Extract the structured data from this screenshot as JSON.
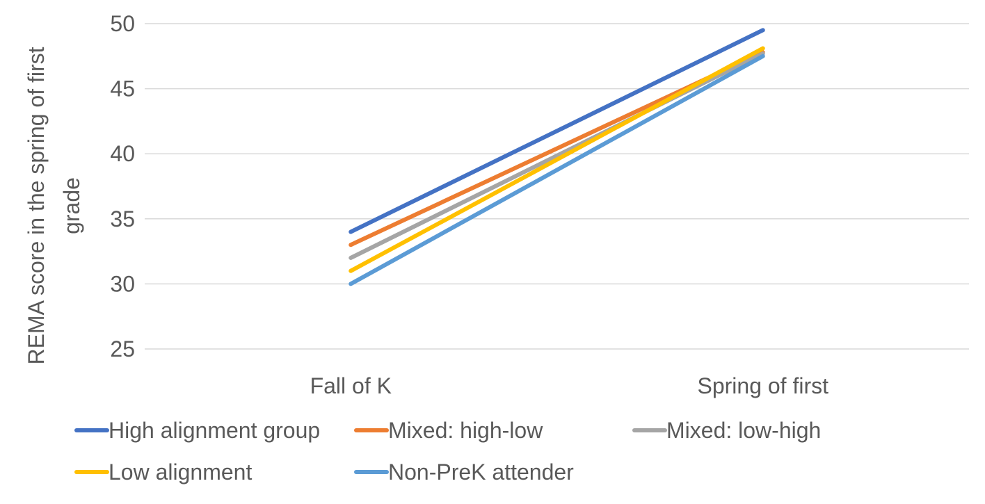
{
  "chart_data": {
    "type": "line",
    "title": "",
    "xlabel": "",
    "ylabel_lines": [
      "REMA score in the spring of first",
      "grade"
    ],
    "categories": [
      "Fall of K",
      "Spring of first"
    ],
    "ylim": [
      25,
      50
    ],
    "yticks": [
      "25",
      "30",
      "35",
      "40",
      "45",
      "50"
    ],
    "grid": true,
    "legend_position": "bottom",
    "series": [
      {
        "name": "High alignment group",
        "color": "#4472C4",
        "values": [
          34,
          49.5
        ]
      },
      {
        "name": "Mixed: high-low",
        "color": "#ED7D31",
        "values": [
          33,
          47.8
        ]
      },
      {
        "name": "Mixed: low-high",
        "color": "#A5A5A5",
        "values": [
          32,
          47.7
        ]
      },
      {
        "name": "Low alignment",
        "color": "#FFC000",
        "values": [
          31,
          48.1
        ]
      },
      {
        "name": "Non-PreK attender",
        "color": "#5B9BD5",
        "values": [
          30,
          47.5
        ]
      }
    ]
  }
}
